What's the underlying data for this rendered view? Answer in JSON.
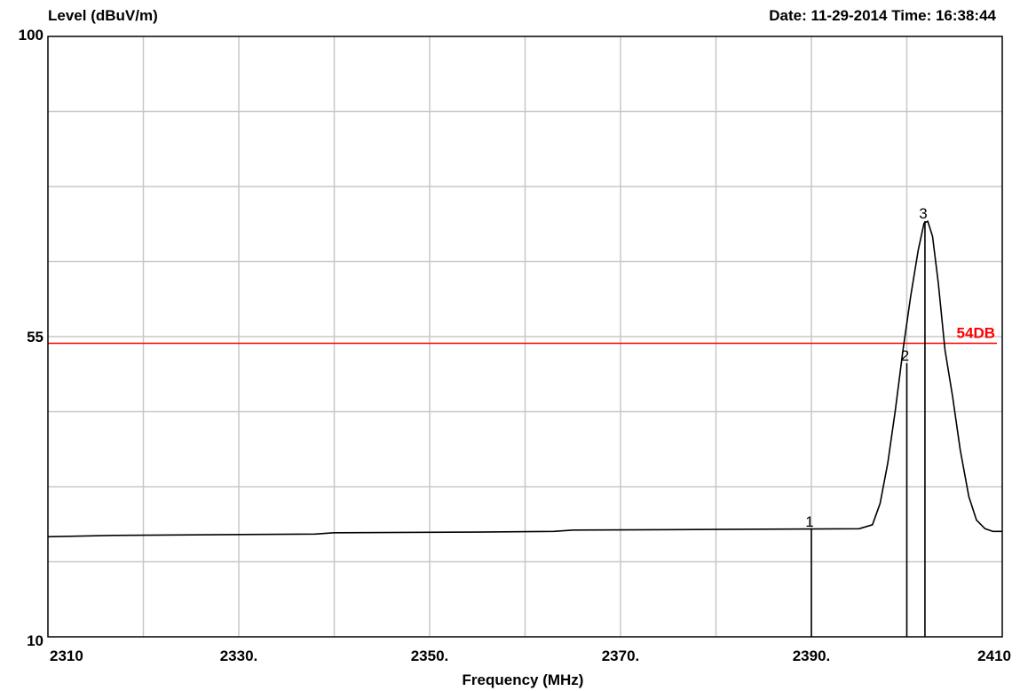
{
  "header": {
    "ylabel": "Level (dBuV/m)",
    "timestamp": "Date: 11-29-2014  Time: 16:38:44"
  },
  "chart_data": {
    "type": "line",
    "xlabel": "Frequency (MHz)",
    "ylabel": "Level (dBuV/m)",
    "xlim": [
      2310,
      2410
    ],
    "ylim": [
      10,
      100
    ],
    "x_ticks": [
      2310,
      2330,
      2350,
      2370,
      2390,
      2410
    ],
    "x_tick_labels": [
      "2310",
      "2330.",
      "2350.",
      "2370.",
      "2390.",
      "2410"
    ],
    "y_tick_labels": [
      {
        "value": 100,
        "label": "100"
      },
      {
        "value": 55,
        "label": "55"
      },
      {
        "value": 10,
        "label": "10"
      }
    ],
    "grid": true,
    "grid_x_step": 10,
    "grid_y_step": 11.25,
    "trace_color": "#000000",
    "limit_line": {
      "value": 54,
      "label": "54DB",
      "color": "#ff0000"
    },
    "series": [
      {
        "points": [
          [
            2310,
            25.0
          ],
          [
            2317,
            25.2
          ],
          [
            2327,
            25.3
          ],
          [
            2338,
            25.4
          ],
          [
            2340,
            25.6
          ],
          [
            2355,
            25.7
          ],
          [
            2363,
            25.8
          ],
          [
            2365,
            26.0
          ],
          [
            2380,
            26.1
          ],
          [
            2395,
            26.2
          ],
          [
            2396.4,
            26.8
          ],
          [
            2397.2,
            30.0
          ],
          [
            2398.0,
            36.0
          ],
          [
            2398.8,
            44.0
          ],
          [
            2399.6,
            53.0
          ],
          [
            2400.4,
            61.0
          ],
          [
            2401.2,
            68.0
          ],
          [
            2401.8,
            72.0
          ],
          [
            2402.2,
            72.3
          ],
          [
            2402.7,
            70.0
          ],
          [
            2403.3,
            63.0
          ],
          [
            2404.0,
            53.0
          ],
          [
            2404.8,
            46.0
          ],
          [
            2405.6,
            38.0
          ],
          [
            2406.5,
            31.0
          ],
          [
            2407.3,
            27.5
          ],
          [
            2408.2,
            26.2
          ],
          [
            2409.0,
            25.8
          ],
          [
            2410,
            25.8
          ]
        ]
      }
    ],
    "markers": [
      {
        "label": "1",
        "x": 2390.0,
        "y": 26.1
      },
      {
        "label": "2",
        "x": 2400.0,
        "y": 51.0
      },
      {
        "label": "3",
        "x": 2401.9,
        "y": 72.3
      }
    ]
  }
}
